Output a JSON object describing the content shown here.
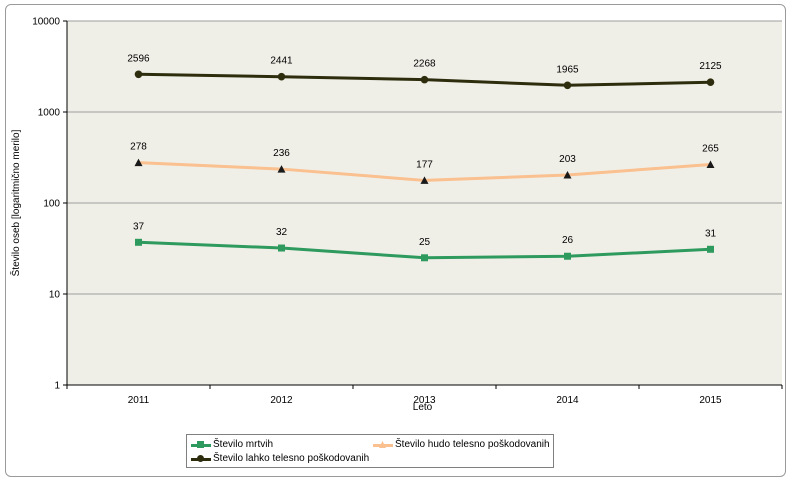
{
  "chart_data": {
    "type": "line",
    "xlabel": "Leto",
    "ylabel": "Število oseb [logaritmično merilo]",
    "yscale": "log",
    "ylim": [
      1,
      10000
    ],
    "yticks": [
      "1",
      "10",
      "100",
      "1000",
      "10000"
    ],
    "categories": [
      "2011",
      "2012",
      "2013",
      "2014",
      "2015"
    ],
    "grid": "horizontal",
    "legend_position": "bottom",
    "series": [
      {
        "name": "Število mrtvih",
        "values": [
          37,
          32,
          25,
          26,
          31
        ],
        "color": "#2e9a5e",
        "marker": "square"
      },
      {
        "name": "Število hudo telesno poškodovanih",
        "values": [
          278,
          236,
          177,
          203,
          265
        ],
        "color": "#fac08f",
        "marker": "triangle"
      },
      {
        "name": "Število lahko telesno poškodovanih",
        "values": [
          2596,
          2441,
          2268,
          1965,
          2125
        ],
        "color": "#2d2d0e",
        "marker": "circle"
      }
    ]
  },
  "colors": {
    "plot_background": "#f0efe7",
    "gridline": "#9c9c9c"
  }
}
